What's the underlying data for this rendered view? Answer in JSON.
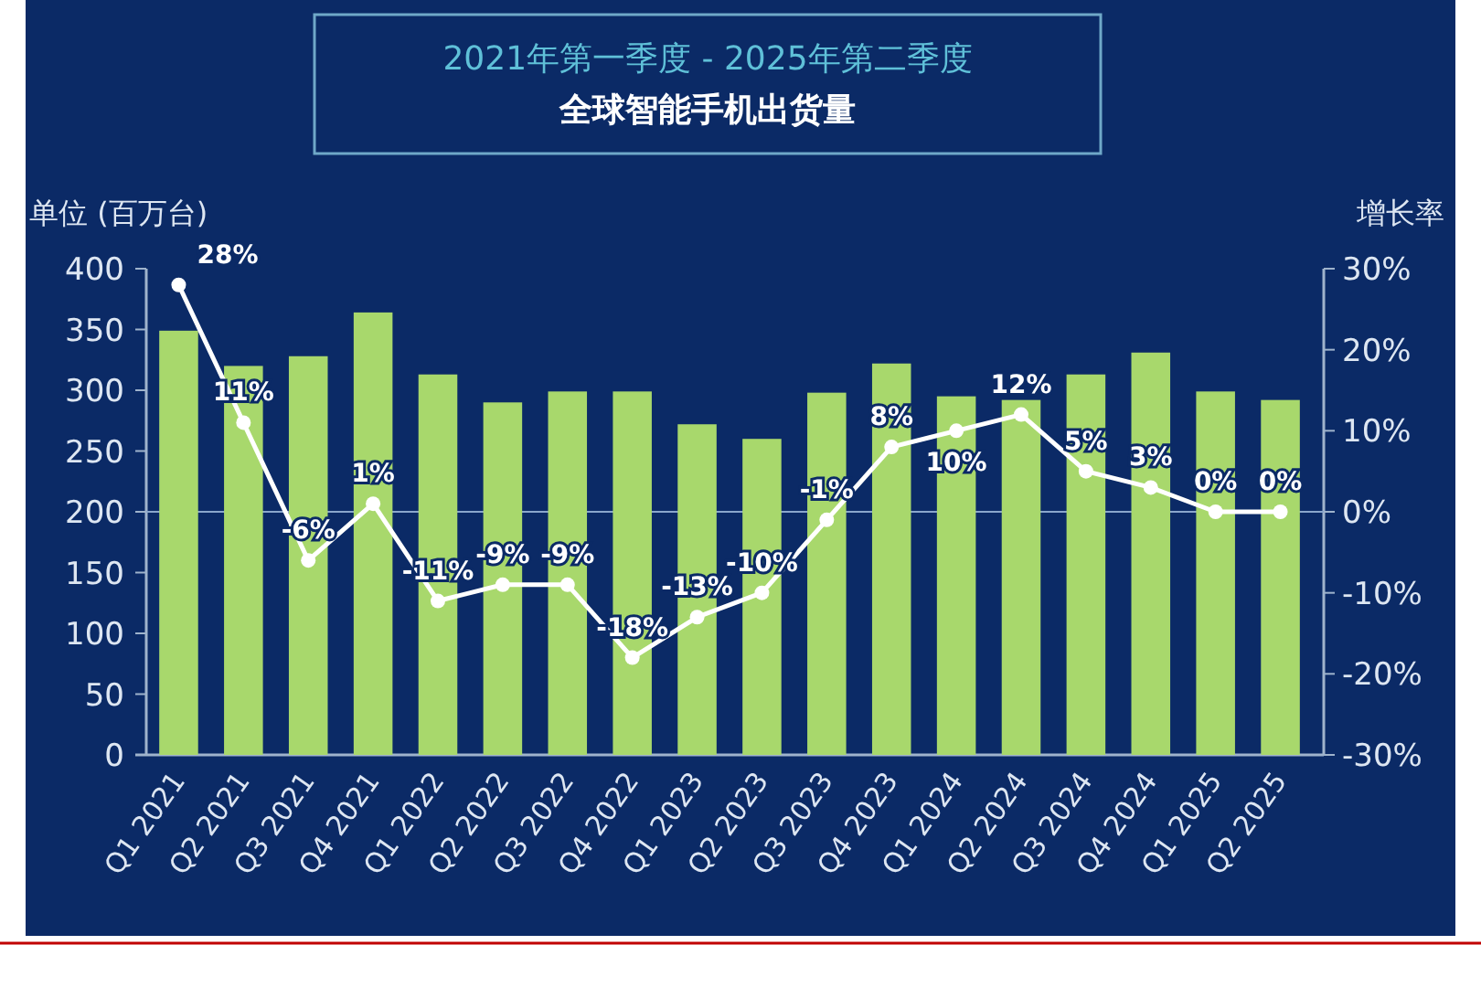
{
  "chart_data": {
    "type": "bar",
    "title": "2021年第一季度 - 2025年第二季度",
    "subtitle": "全球智能手机出货量",
    "ylabel": "单位 (百万台)",
    "y2label": "增长率",
    "categories": [
      "Q1 2021",
      "Q2 2021",
      "Q3 2021",
      "Q4 2021",
      "Q1 2022",
      "Q2 2022",
      "Q3 2022",
      "Q4 2022",
      "Q1 2023",
      "Q2 2023",
      "Q3 2023",
      "Q4 2023",
      "Q1 2024",
      "Q2 2024",
      "Q3 2024",
      "Q4 2024",
      "Q1 2025",
      "Q2 2025"
    ],
    "series": [
      {
        "color": "#a8d86c",
        "values": [
          349,
          320,
          328,
          364,
          313,
          290,
          299,
          299,
          272,
          260,
          298,
          322,
          295,
          292,
          313,
          331,
          299,
          292
        ]
      },
      {
        "type": "line",
        "axis": "y2",
        "color": "#ffffff",
        "marker": "circle",
        "values": [
          28,
          11,
          -6,
          1,
          -11,
          -9,
          -9,
          -18,
          -13,
          -10,
          -1,
          8,
          10,
          12,
          5,
          3,
          0,
          0
        ],
        "value_labels": [
          "28%",
          "11%",
          "-6%",
          "1%",
          "-11%",
          "-9%",
          "-9%",
          "-18%",
          "-13%",
          "-10%",
          "-1%",
          "8%",
          "10%",
          "12%",
          "5%",
          "3%",
          "0%",
          "0%"
        ]
      }
    ],
    "ylim": [
      0,
      400
    ],
    "yticks": [
      0,
      50,
      100,
      150,
      200,
      250,
      300,
      350,
      400
    ],
    "y2lim": [
      -30,
      30
    ],
    "y2ticks": [
      {
        "value": -30,
        "label": "-30%"
      },
      {
        "value": -20,
        "label": "-20%"
      },
      {
        "value": -10,
        "label": "-10%"
      },
      {
        "value": 0,
        "label": "0%"
      },
      {
        "value": 10,
        "label": "10%"
      },
      {
        "value": 20,
        "label": "20%"
      },
      {
        "value": 30,
        "label": "30%"
      }
    ],
    "ref_lines": [
      {
        "axis": "y2",
        "value": 0,
        "color": "#8aa6cc"
      }
    ]
  }
}
